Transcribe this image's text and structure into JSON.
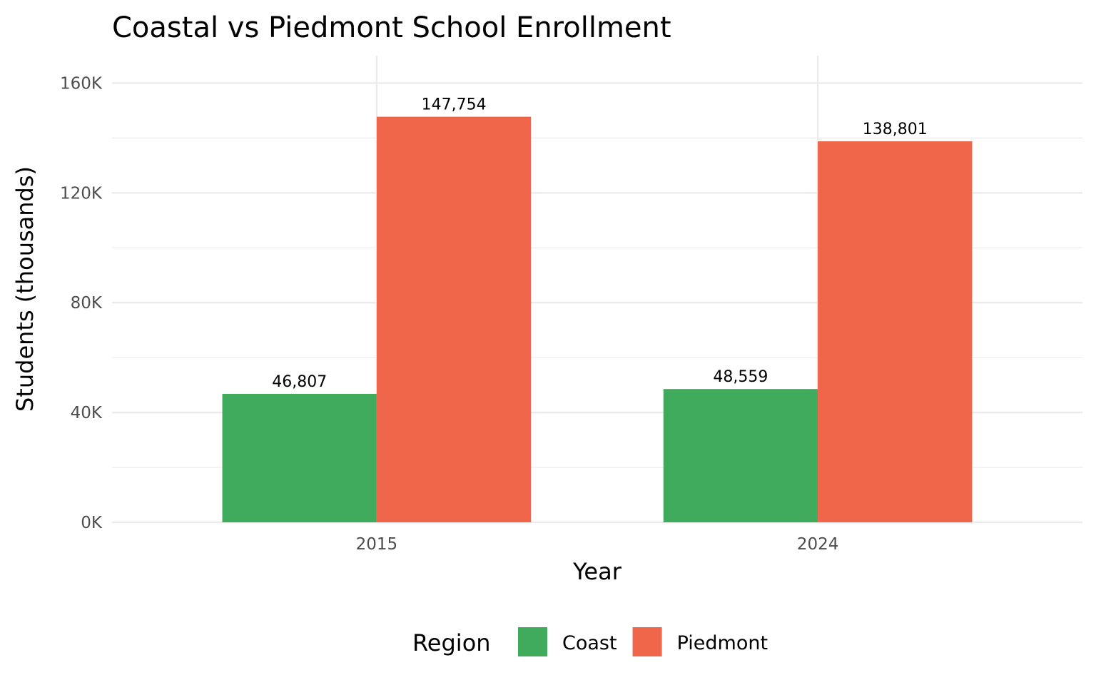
{
  "chart_data": {
    "type": "bar",
    "title": "Coastal vs Piedmont School Enrollment",
    "xlabel": "Year",
    "ylabel": "Students (thousands)",
    "categories": [
      "2015",
      "2024"
    ],
    "series": [
      {
        "name": "Coast",
        "color": "#41AB5D",
        "values": [
          46807,
          48559
        ],
        "labels": [
          "46,807",
          "48,559"
        ]
      },
      {
        "name": "Piedmont",
        "color": "#EF664A",
        "values": [
          147754,
          138801
        ],
        "labels": [
          "147,754",
          "138,801"
        ]
      }
    ],
    "ylim": [
      0,
      170000
    ],
    "yticks": [
      0,
      40000,
      80000,
      120000,
      160000
    ],
    "ytick_labels": [
      "0K",
      "40K",
      "80K",
      "120K",
      "160K"
    ],
    "grid": true,
    "legend": {
      "title": "Region",
      "placement": "bottom"
    }
  }
}
